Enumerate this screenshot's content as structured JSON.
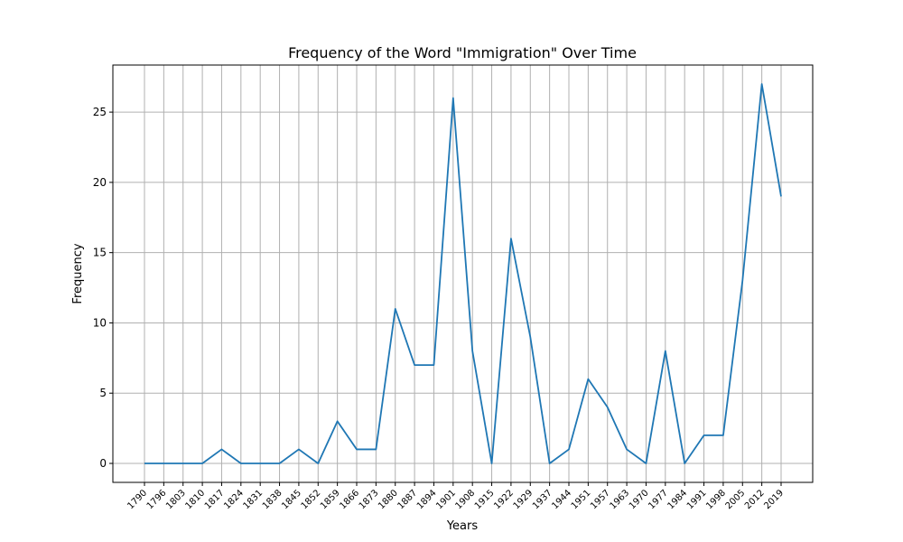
{
  "chart_data": {
    "type": "line",
    "title": "Frequency of the Word \"Immigration\" Over Time",
    "xlabel": "Years",
    "ylabel": "Frequency",
    "ylim": [
      -1.35,
      28.35
    ],
    "yticks": [
      0,
      5,
      10,
      15,
      20,
      25
    ],
    "grid": true,
    "legend": "none",
    "line_color": "#1f77b4",
    "x": [
      "1790",
      "1796",
      "1803",
      "1810",
      "1817",
      "1824",
      "1831",
      "1838",
      "1845",
      "1852",
      "1859",
      "1866",
      "1873",
      "1880",
      "1887",
      "1894",
      "1901",
      "1908",
      "1915",
      "1922",
      "1929",
      "1937",
      "1944",
      "1951",
      "1957",
      "1963",
      "1970",
      "1977",
      "1984",
      "1991",
      "1998",
      "2005",
      "2012",
      "2019"
    ],
    "series": [
      {
        "values": [
          0,
          0,
          0,
          0,
          1,
          0,
          0,
          0,
          1,
          0,
          3,
          1,
          1,
          11,
          7,
          7,
          26,
          8,
          0,
          16,
          9,
          0,
          1,
          6,
          4,
          1,
          0,
          8,
          0,
          2,
          2,
          13,
          27,
          19
        ]
      }
    ]
  }
}
